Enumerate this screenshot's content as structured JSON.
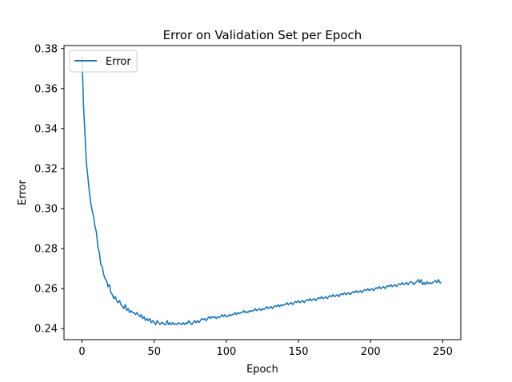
{
  "chart_data": {
    "type": "line",
    "title": "Error on Validation Set per Epoch",
    "xlabel": "Epoch",
    "ylabel": "Error",
    "xlim": [
      -12.5,
      262.5
    ],
    "ylim": [
      0.2345,
      0.3815
    ],
    "xticks": [
      0,
      50,
      100,
      150,
      200,
      250
    ],
    "yticks": [
      0.24,
      0.26,
      0.28,
      0.3,
      0.32,
      0.34,
      0.36,
      0.38
    ],
    "ytick_labels": [
      "0.24",
      "0.26",
      "0.28",
      "0.30",
      "0.32",
      "0.34",
      "0.36",
      "0.38"
    ],
    "grid": false,
    "legend": {
      "placement": "upper-left",
      "entries": [
        "Error"
      ]
    },
    "series": [
      {
        "name": "Error",
        "color": "#1f77b4",
        "x_start": 0,
        "x_step": 1,
        "values": [
          0.3765,
          0.352,
          0.338,
          0.323,
          0.316,
          0.309,
          0.303,
          0.299,
          0.296,
          0.291,
          0.288,
          0.281,
          0.278,
          0.272,
          0.271,
          0.267,
          0.265,
          0.264,
          0.261,
          0.262,
          0.258,
          0.257,
          0.255,
          0.256,
          0.254,
          0.253,
          0.254,
          0.252,
          0.251,
          0.25,
          0.252,
          0.249,
          0.25,
          0.248,
          0.249,
          0.248,
          0.248,
          0.247,
          0.248,
          0.247,
          0.246,
          0.247,
          0.245,
          0.246,
          0.244,
          0.245,
          0.244,
          0.245,
          0.243,
          0.244,
          0.243,
          0.242,
          0.244,
          0.243,
          0.242,
          0.243,
          0.243,
          0.242,
          0.242,
          0.244,
          0.242,
          0.243,
          0.242,
          0.243,
          0.242,
          0.2425,
          0.242,
          0.243,
          0.2425,
          0.242,
          0.243,
          0.242,
          0.243,
          0.2425,
          0.244,
          0.243,
          0.242,
          0.243,
          0.244,
          0.243,
          0.244,
          0.243,
          0.244,
          0.245,
          0.2445,
          0.245,
          0.244,
          0.245,
          0.246,
          0.245,
          0.246,
          0.2455,
          0.246,
          0.245,
          0.246,
          0.2455,
          0.246,
          0.247,
          0.246,
          0.247,
          0.246,
          0.246,
          0.247,
          0.2465,
          0.247,
          0.247,
          0.248,
          0.247,
          0.248,
          0.2475,
          0.248,
          0.248,
          0.249,
          0.248,
          0.2485,
          0.248,
          0.249,
          0.2485,
          0.249,
          0.249,
          0.25,
          0.249,
          0.2495,
          0.25,
          0.249,
          0.25,
          0.2495,
          0.25,
          0.251,
          0.25,
          0.2505,
          0.251,
          0.25,
          0.251,
          0.2515,
          0.251,
          0.252,
          0.251,
          0.252,
          0.2515,
          0.252,
          0.252,
          0.253,
          0.252,
          0.2525,
          0.253,
          0.252,
          0.253,
          0.2535,
          0.253,
          0.254,
          0.253,
          0.2535,
          0.254,
          0.253,
          0.254,
          0.2545,
          0.254,
          0.255,
          0.254,
          0.2545,
          0.255,
          0.254,
          0.255,
          0.2555,
          0.255,
          0.256,
          0.255,
          0.2555,
          0.256,
          0.255,
          0.256,
          0.2565,
          0.256,
          0.257,
          0.256,
          0.2565,
          0.257,
          0.256,
          0.257,
          0.2575,
          0.257,
          0.258,
          0.257,
          0.2575,
          0.258,
          0.257,
          0.258,
          0.2585,
          0.258,
          0.259,
          0.258,
          0.2585,
          0.259,
          0.258,
          0.259,
          0.2595,
          0.259,
          0.26,
          0.259,
          0.2595,
          0.26,
          0.259,
          0.26,
          0.2605,
          0.26,
          0.261,
          0.26,
          0.2605,
          0.261,
          0.26,
          0.261,
          0.2615,
          0.261,
          0.262,
          0.261,
          0.2615,
          0.262,
          0.261,
          0.262,
          0.2625,
          0.262,
          0.263,
          0.262,
          0.2625,
          0.263,
          0.262,
          0.263,
          0.2635,
          0.263,
          0.262,
          0.263,
          0.2635,
          0.2645,
          0.263,
          0.2645,
          0.262,
          0.263,
          0.262,
          0.2635,
          0.2625,
          0.263,
          0.2625,
          0.263,
          0.2635,
          0.264,
          0.263,
          0.2645,
          0.263,
          0.263
        ]
      }
    ]
  }
}
